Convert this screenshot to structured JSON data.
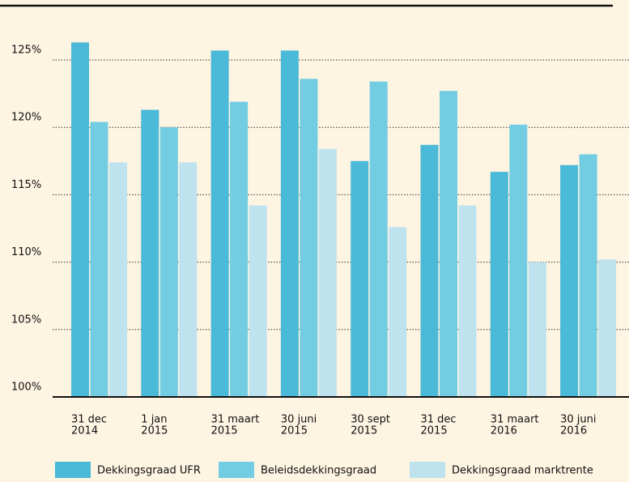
{
  "chart_data": {
    "type": "bar",
    "categories": [
      [
        "31 dec",
        "2014"
      ],
      [
        "1 jan",
        "2015"
      ],
      [
        "31 maart",
        "2015"
      ],
      [
        "30 juni",
        "2015"
      ],
      [
        "30 sept",
        "2015"
      ],
      [
        "31 dec",
        "2015"
      ],
      [
        "31 maart",
        "2016"
      ],
      [
        "30 juni",
        "2016"
      ]
    ],
    "series": [
      {
        "name": "Dekkingsgraad UFR",
        "color": "#4bb9d8",
        "values": [
          126.3,
          121.3,
          125.7,
          125.7,
          117.5,
          118.7,
          116.7,
          117.2
        ]
      },
      {
        "name": "Beleidsdekkingsgraad",
        "color": "#72cde3",
        "values": [
          120.4,
          120.0,
          121.9,
          123.6,
          123.4,
          122.7,
          120.2,
          118.0
        ]
      },
      {
        "name": "Dekkingsgraad marktrente",
        "color": "#bfe3ee",
        "values": [
          117.4,
          117.4,
          114.2,
          118.4,
          112.6,
          114.2,
          110.0,
          110.2
        ]
      }
    ],
    "ylim": [
      100,
      127
    ],
    "yticks": [
      {
        "value": 100,
        "label": "100%"
      },
      {
        "value": 105,
        "label": "105%"
      },
      {
        "value": 110,
        "label": "110%"
      },
      {
        "value": 115,
        "label": "115%"
      },
      {
        "value": 120,
        "label": "120%"
      },
      {
        "value": 125,
        "label": "125%"
      }
    ],
    "grid": true
  }
}
